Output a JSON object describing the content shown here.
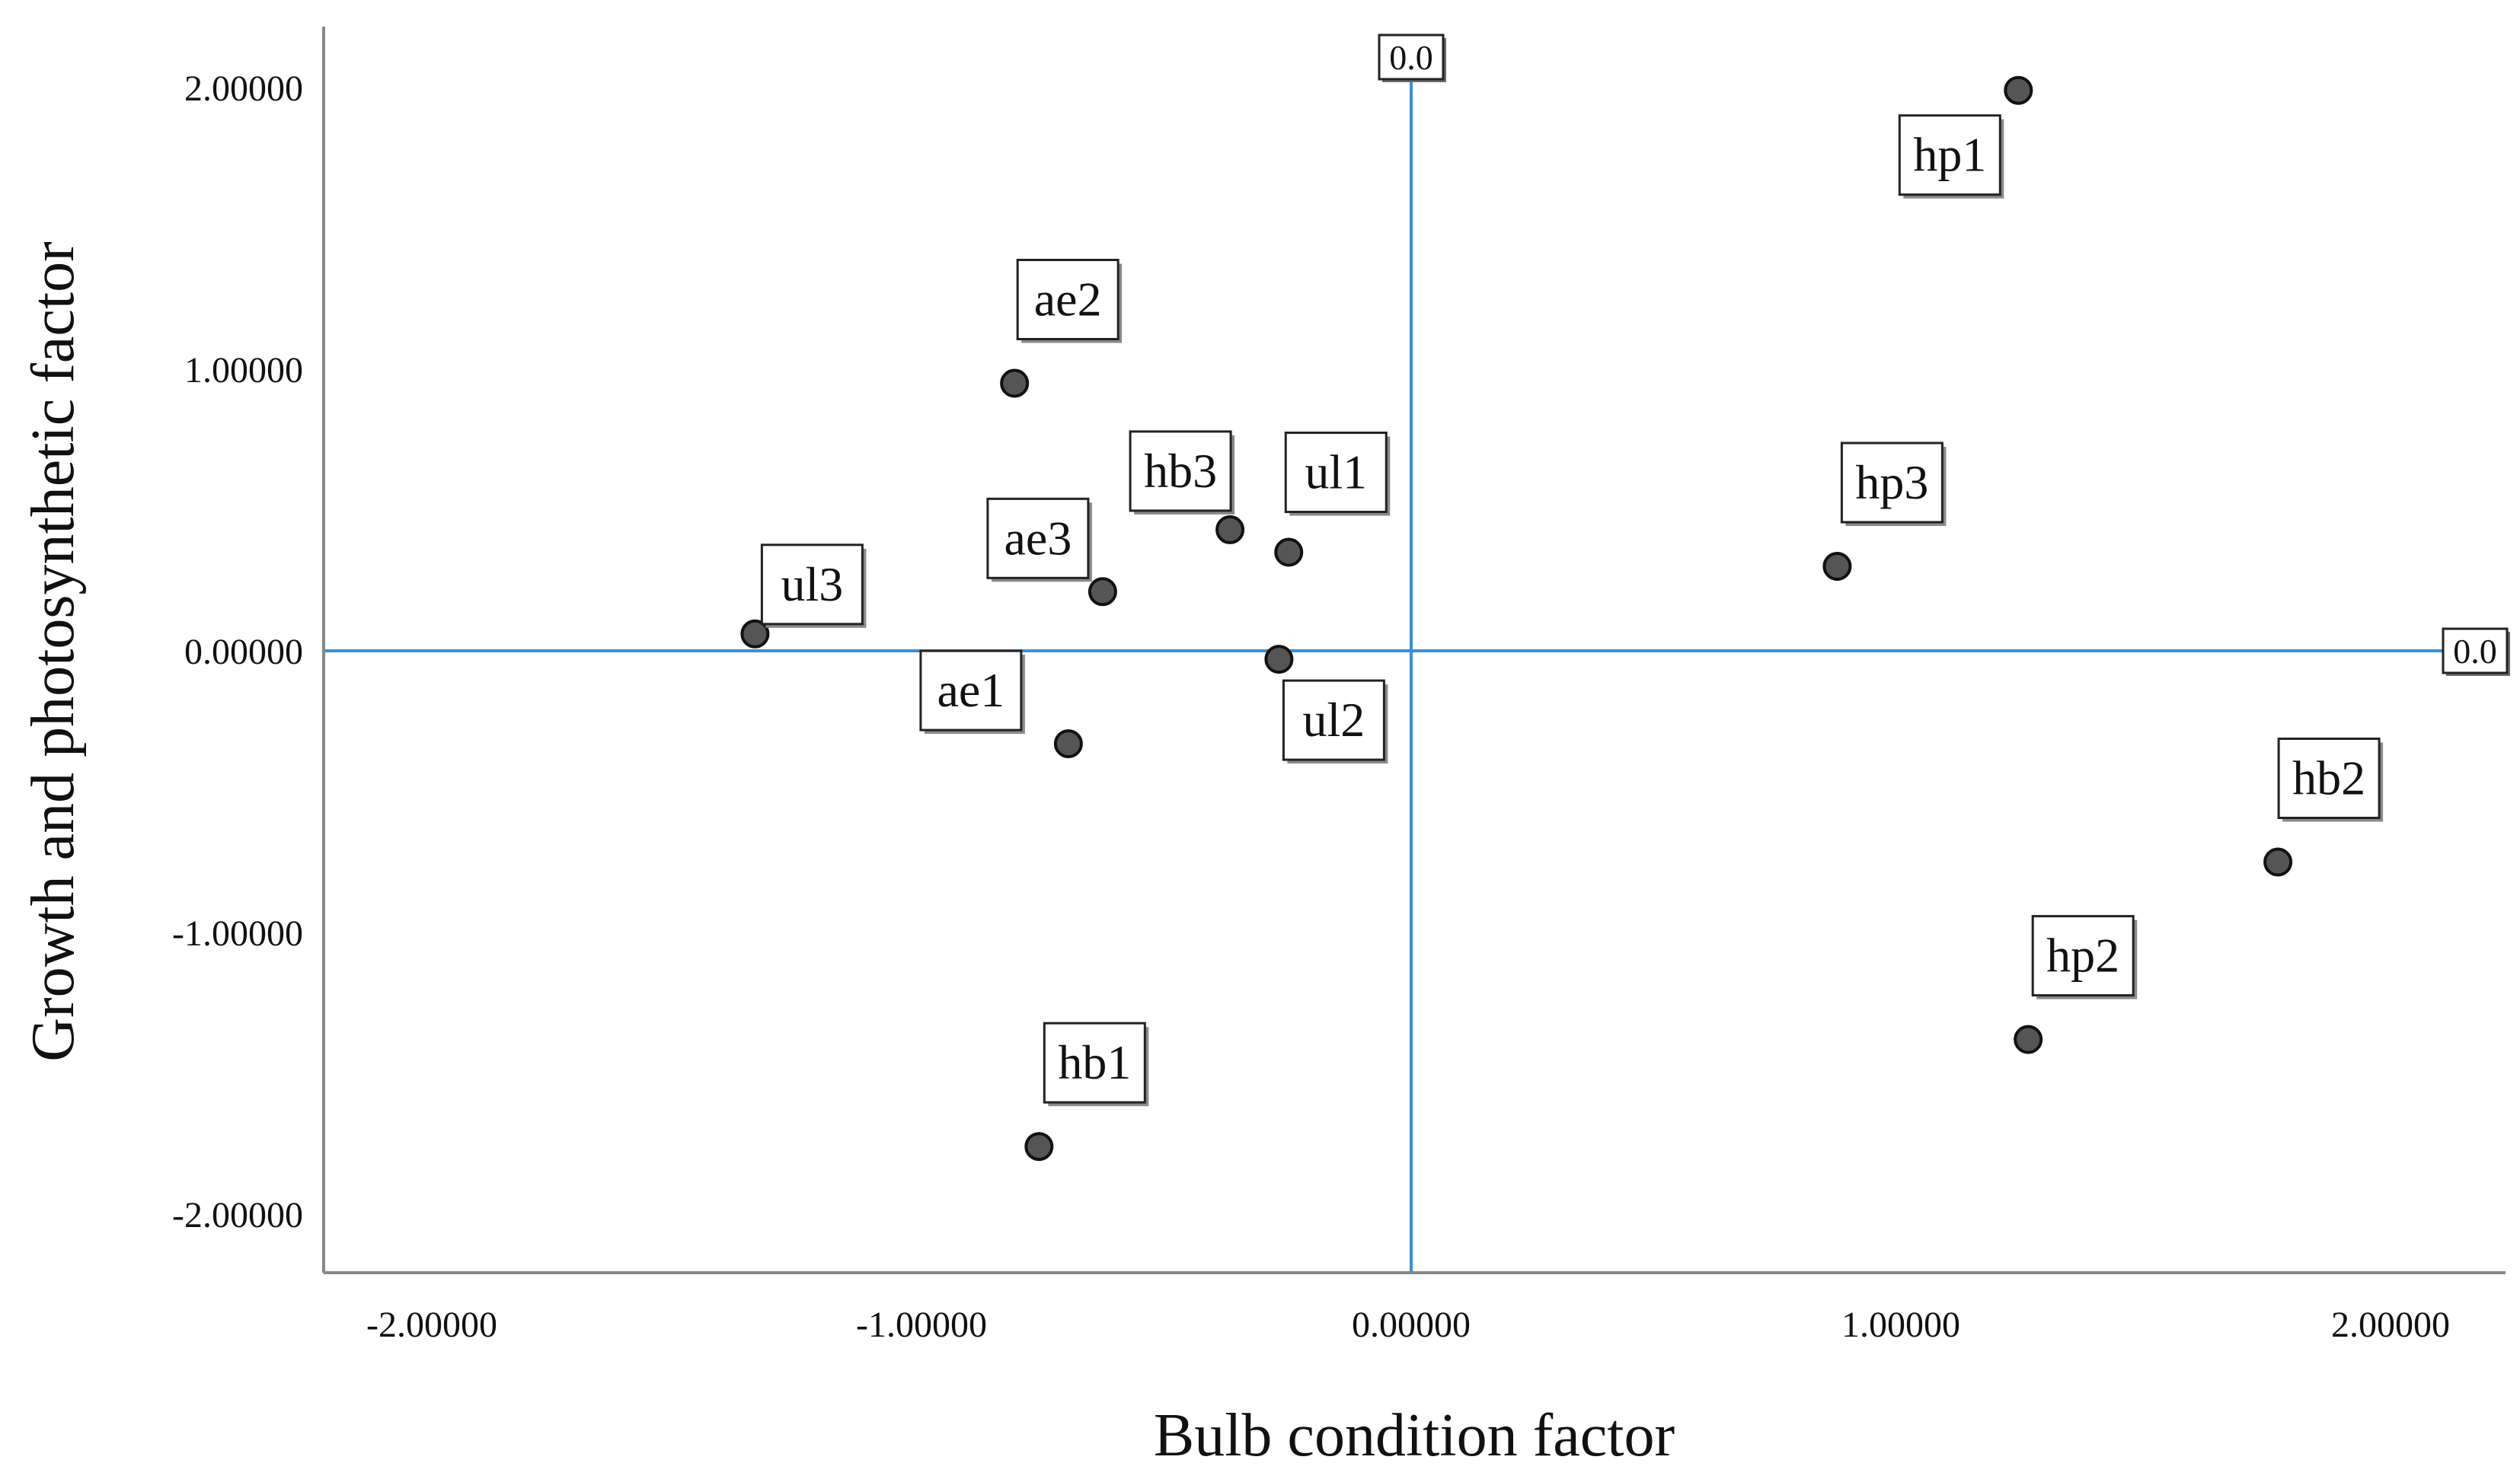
{
  "chart_data": {
    "type": "scatter",
    "xlabel": "Bulb condition factor",
    "ylabel": "Growth and photosynthetic factor",
    "xlim": [
      -2.2,
      2.2
    ],
    "ylim": [
      -2.2,
      2.2
    ],
    "x_ticks": [
      -2,
      -1,
      0,
      1,
      2
    ],
    "y_ticks": [
      -2,
      -1,
      0,
      1,
      2
    ],
    "x_tick_labels": [
      "-2.00000",
      "-1.00000",
      "0.00000",
      "1.00000",
      "2.00000"
    ],
    "y_tick_labels": [
      "-2.00000",
      "-1.00000",
      "0.00000",
      "1.00000",
      "2.00000"
    ],
    "reference_lines": [
      {
        "orientation": "vertical",
        "value": 0.0,
        "label": "0.0"
      },
      {
        "orientation": "horizontal",
        "value": 0.0,
        "label": "0.0"
      }
    ],
    "points": [
      {
        "label": "hp1",
        "x": 1.24,
        "y": 1.99
      },
      {
        "label": "ae2",
        "x": -0.81,
        "y": 0.95
      },
      {
        "label": "hb3",
        "x": -0.37,
        "y": 0.43
      },
      {
        "label": "ul1",
        "x": -0.25,
        "y": 0.35
      },
      {
        "label": "ae3",
        "x": -0.63,
        "y": 0.21
      },
      {
        "label": "ul3",
        "x": -1.34,
        "y": 0.06
      },
      {
        "label": "hp3",
        "x": 0.87,
        "y": 0.3
      },
      {
        "label": "ul2",
        "x": -0.27,
        "y": -0.03
      },
      {
        "label": "ae1",
        "x": -0.7,
        "y": -0.33
      },
      {
        "label": "hb2",
        "x": 1.77,
        "y": -0.75
      },
      {
        "label": "hp2",
        "x": 1.26,
        "y": -1.38
      },
      {
        "label": "hb1",
        "x": -0.76,
        "y": -1.76
      }
    ],
    "grid": false,
    "legend": "none"
  },
  "colors": {
    "point_fill": "#555555",
    "point_stroke": "#111111",
    "reference_line": "#3a8fd6",
    "axis": "#888888",
    "label_box_stroke": "#222222"
  }
}
